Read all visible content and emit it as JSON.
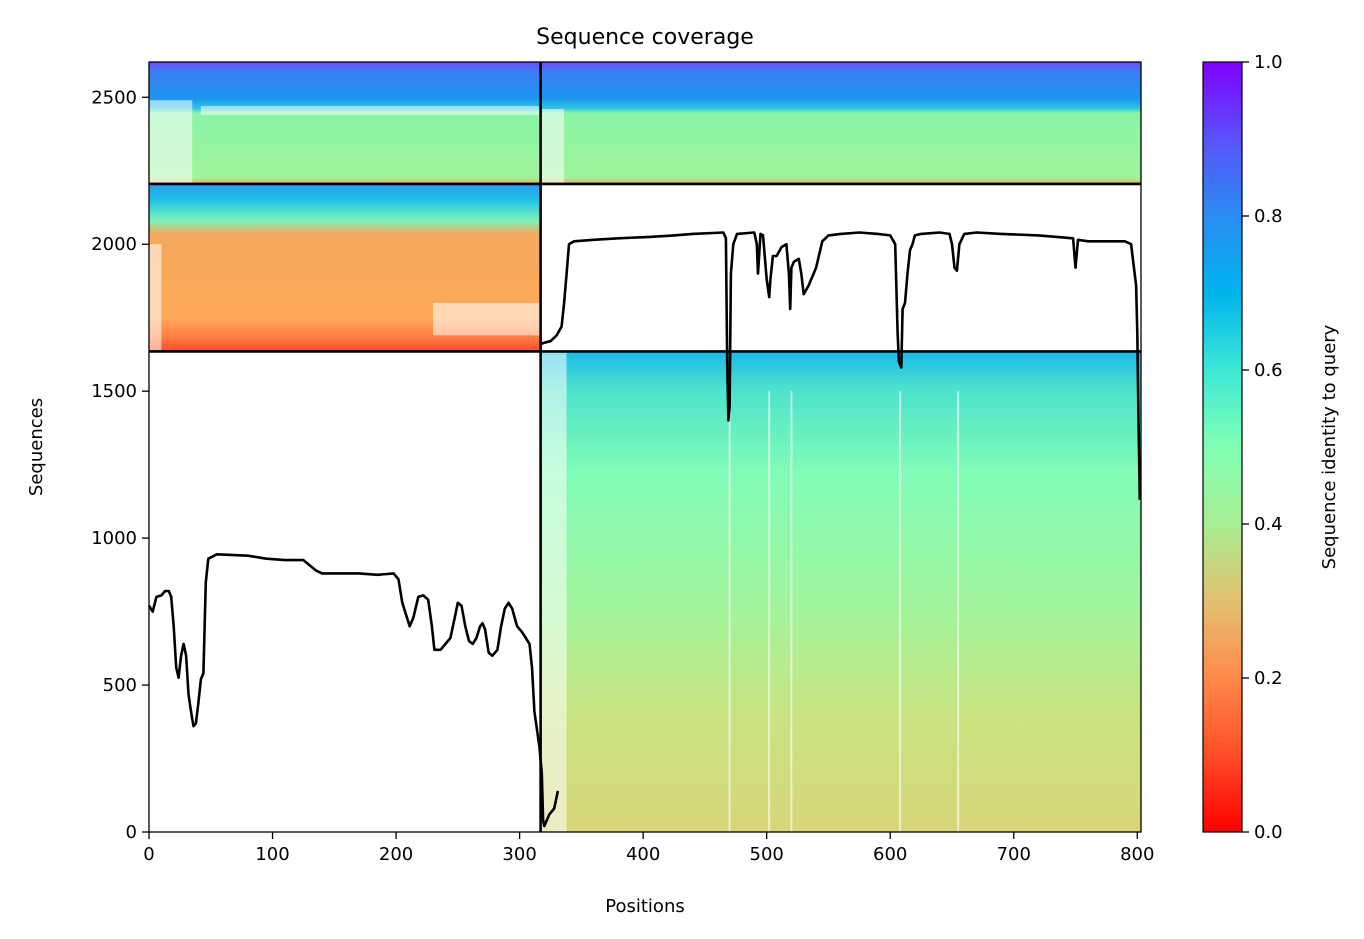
{
  "chart_data": {
    "type": "heatmap",
    "title": "Sequence coverage",
    "xlabel": "Positions",
    "ylabel": "Sequences",
    "xlim": [
      0,
      803
    ],
    "ylim": [
      0,
      2620
    ],
    "xticks": [
      0,
      100,
      200,
      300,
      400,
      500,
      600,
      700,
      800
    ],
    "yticks": [
      0,
      500,
      1000,
      1500,
      2000,
      2500
    ],
    "grid": false,
    "colorbar": {
      "label": "Sequence identity to query",
      "range": [
        0,
        1
      ],
      "ticks": [
        0.0,
        0.2,
        0.4,
        0.6,
        0.8,
        1.0
      ],
      "tick_labels": [
        "0.0",
        "0.2",
        "0.4",
        "0.6",
        "0.8",
        "1.0"
      ],
      "colormap": "rainbow_r",
      "colors": [
        "#ff0000",
        "#ff7f3f",
        "#d4d77a",
        "#80ffb4",
        "#00b4ec",
        "#8000ff"
      ]
    },
    "segment_divisions": {
      "x": [
        317
      ],
      "y": [
        1635,
        2205
      ]
    },
    "coverage_blocks": [
      {
        "x_range": [
          0,
          317
        ],
        "y_range": [
          2205,
          2620
        ],
        "identity_top": 0.85,
        "identity_bulk": 0.45
      },
      {
        "x_range": [
          317,
          803
        ],
        "y_range": [
          2205,
          2620
        ],
        "identity_top": 0.85,
        "identity_bulk": 0.45
      },
      {
        "x_range": [
          0,
          317
        ],
        "y_range": [
          1635,
          2205
        ],
        "identity_top": 0.65,
        "identity_bulk": 0.24
      },
      {
        "x_range": [
          317,
          803
        ],
        "y_range": [
          0,
          1635
        ],
        "identity_top": 0.62,
        "identity_bulk": 0.33
      }
    ],
    "series": [
      {
        "points": [
          [
            0,
            770
          ],
          [
            3,
            750
          ],
          [
            6,
            800
          ],
          [
            10,
            805
          ],
          [
            13,
            820
          ],
          [
            16,
            820
          ],
          [
            18,
            800
          ],
          [
            20,
            700
          ],
          [
            22,
            560
          ],
          [
            24,
            525
          ],
          [
            26,
            600
          ],
          [
            28,
            640
          ],
          [
            30,
            600
          ],
          [
            32,
            470
          ],
          [
            34,
            410
          ],
          [
            36,
            360
          ],
          [
            38,
            370
          ],
          [
            40,
            440
          ],
          [
            42,
            520
          ],
          [
            44,
            540
          ],
          [
            46,
            850
          ],
          [
            48,
            930
          ],
          [
            55,
            945
          ],
          [
            80,
            940
          ],
          [
            95,
            930
          ],
          [
            110,
            925
          ],
          [
            125,
            925
          ],
          [
            135,
            890
          ],
          [
            140,
            880
          ],
          [
            170,
            880
          ],
          [
            185,
            875
          ],
          [
            198,
            880
          ],
          [
            202,
            860
          ],
          [
            205,
            780
          ],
          [
            208,
            740
          ],
          [
            211,
            700
          ],
          [
            214,
            730
          ],
          [
            218,
            800
          ],
          [
            222,
            805
          ],
          [
            226,
            790
          ],
          [
            229,
            700
          ],
          [
            231,
            620
          ],
          [
            236,
            620
          ],
          [
            240,
            640
          ],
          [
            244,
            660
          ],
          [
            246,
            700
          ],
          [
            248,
            740
          ],
          [
            250,
            780
          ],
          [
            253,
            770
          ],
          [
            256,
            700
          ],
          [
            259,
            650
          ],
          [
            262,
            640
          ],
          [
            265,
            660
          ],
          [
            268,
            700
          ],
          [
            270,
            710
          ],
          [
            272,
            690
          ],
          [
            275,
            610
          ],
          [
            278,
            600
          ],
          [
            282,
            620
          ],
          [
            285,
            700
          ],
          [
            288,
            760
          ],
          [
            291,
            780
          ],
          [
            294,
            760
          ],
          [
            298,
            700
          ],
          [
            302,
            680
          ],
          [
            305,
            660
          ],
          [
            308,
            640
          ],
          [
            310,
            560
          ],
          [
            312,
            410
          ],
          [
            314,
            350
          ],
          [
            316,
            290
          ],
          [
            318,
            200
          ],
          [
            319,
            40
          ],
          [
            320,
            20
          ],
          [
            324,
            60
          ],
          [
            328,
            80
          ],
          [
            331,
            140
          ]
        ]
      },
      {
        "points": [
          [
            317,
            1660
          ],
          [
            320,
            1665
          ],
          [
            325,
            1670
          ],
          [
            330,
            1690
          ],
          [
            334,
            1720
          ],
          [
            336,
            1800
          ],
          [
            338,
            1900
          ],
          [
            340,
            2000
          ],
          [
            344,
            2010
          ],
          [
            360,
            2015
          ],
          [
            380,
            2020
          ],
          [
            405,
            2025
          ],
          [
            425,
            2030
          ],
          [
            440,
            2035
          ],
          [
            465,
            2040
          ],
          [
            467,
            2020
          ],
          [
            468,
            1600
          ],
          [
            469,
            1400
          ],
          [
            470,
            1450
          ],
          [
            471,
            1900
          ],
          [
            473,
            2000
          ],
          [
            476,
            2035
          ],
          [
            490,
            2040
          ],
          [
            492,
            2000
          ],
          [
            493,
            1900
          ],
          [
            495,
            2035
          ],
          [
            497,
            2030
          ],
          [
            500,
            1880
          ],
          [
            502,
            1820
          ],
          [
            503,
            1880
          ],
          [
            505,
            1960
          ],
          [
            508,
            1960
          ],
          [
            512,
            1990
          ],
          [
            516,
            2000
          ],
          [
            518,
            1900
          ],
          [
            519,
            1780
          ],
          [
            520,
            1920
          ],
          [
            522,
            1940
          ],
          [
            526,
            1950
          ],
          [
            528,
            1900
          ],
          [
            530,
            1830
          ],
          [
            534,
            1860
          ],
          [
            540,
            1920
          ],
          [
            545,
            2010
          ],
          [
            550,
            2030
          ],
          [
            560,
            2035
          ],
          [
            575,
            2040
          ],
          [
            590,
            2035
          ],
          [
            600,
            2030
          ],
          [
            604,
            2000
          ],
          [
            606,
            1700
          ],
          [
            607,
            1600
          ],
          [
            609,
            1580
          ],
          [
            610,
            1780
          ],
          [
            612,
            1800
          ],
          [
            614,
            1900
          ],
          [
            616,
            1980
          ],
          [
            618,
            2000
          ],
          [
            620,
            2030
          ],
          [
            625,
            2035
          ],
          [
            640,
            2040
          ],
          [
            648,
            2035
          ],
          [
            650,
            2000
          ],
          [
            652,
            1920
          ],
          [
            654,
            1910
          ],
          [
            656,
            2000
          ],
          [
            660,
            2035
          ],
          [
            670,
            2040
          ],
          [
            690,
            2035
          ],
          [
            720,
            2030
          ],
          [
            748,
            2020
          ],
          [
            750,
            1920
          ],
          [
            752,
            2015
          ],
          [
            760,
            2010
          ],
          [
            790,
            2010
          ],
          [
            795,
            2000
          ],
          [
            797,
            1930
          ],
          [
            799,
            1860
          ],
          [
            800,
            1700
          ],
          [
            801,
            1400
          ],
          [
            802,
            1130
          ]
        ]
      }
    ]
  }
}
